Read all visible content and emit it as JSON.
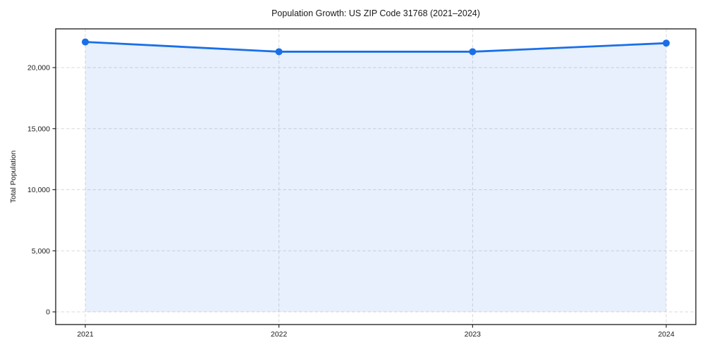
{
  "chart_data": {
    "type": "area",
    "title": "Population Growth: US ZIP Code 31768 (2021–2024)",
    "xlabel": "",
    "ylabel": "Total Population",
    "categories": [
      "2021",
      "2022",
      "2023",
      "2024"
    ],
    "series": [
      {
        "name": "Total Population",
        "values": [
          22100,
          21300,
          21300,
          22000
        ]
      }
    ],
    "yticks": [
      0,
      5000,
      10000,
      15000,
      20000
    ],
    "ytick_labels": [
      "0",
      "5,000",
      "10,000",
      "15,000",
      "20,000"
    ],
    "ylim": [
      -1040,
      23170
    ],
    "grid": true,
    "grid_style": "dashed",
    "legend_position": "none",
    "colors": {
      "line": "#1a6fe8",
      "marker": "#1a6fe8",
      "fill": "rgba(26,111,232,0.10)",
      "grid": "#d8d8d8",
      "axis": "#1a1a1a",
      "background": "#ffffff"
    }
  }
}
